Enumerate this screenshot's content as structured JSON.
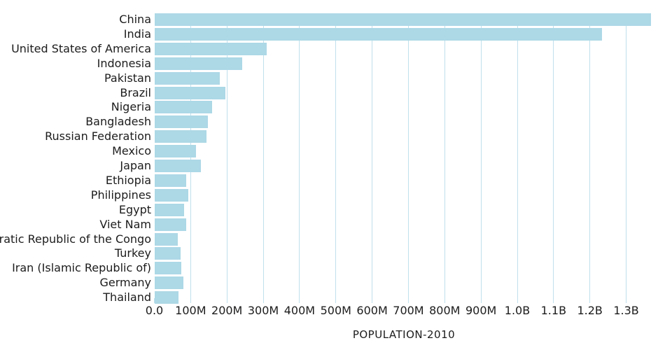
{
  "chart_data": {
    "type": "bar",
    "orientation": "horizontal",
    "title": "",
    "xlabel": "POPULATION-2010",
    "ylabel": "",
    "unit": "people",
    "categories": [
      "China",
      "India",
      "United States of America",
      "Indonesia",
      "Pakistan",
      "Brazil",
      "Nigeria",
      "Bangladesh",
      "Russian Federation",
      "Mexico",
      "Japan",
      "Ethiopia",
      "Philippines",
      "Egypt",
      "Viet Nam",
      "Democratic Republic of the Congo",
      "Turkey",
      "Iran (Islamic Republic of)",
      "Germany",
      "Thailand"
    ],
    "values_millions": [
      1368.8,
      1234.3,
      309.0,
      241.8,
      179.4,
      195.7,
      158.5,
      147.6,
      143.5,
      114.1,
      128.1,
      87.6,
      94.0,
      82.8,
      88.0,
      64.6,
      72.3,
      74.3,
      80.8,
      67.2
    ],
    "x_ticks": [
      {
        "label": "0.0",
        "millions": 0
      },
      {
        "label": "100M",
        "millions": 100
      },
      {
        "label": "200M",
        "millions": 200
      },
      {
        "label": "300M",
        "millions": 300
      },
      {
        "label": "400M",
        "millions": 400
      },
      {
        "label": "500M",
        "millions": 500
      },
      {
        "label": "600M",
        "millions": 600
      },
      {
        "label": "700M",
        "millions": 700
      },
      {
        "label": "800M",
        "millions": 800
      },
      {
        "label": "900M",
        "millions": 900
      },
      {
        "label": "1.0B",
        "millions": 1000
      },
      {
        "label": "1.1B",
        "millions": 1100
      },
      {
        "label": "1.2B",
        "millions": 1200
      },
      {
        "label": "1.3B",
        "millions": 1300
      }
    ],
    "xlim_millions": [
      0,
      1376
    ],
    "grid": true,
    "legend": "none",
    "colors": {
      "bar": "#ADD8E6",
      "gridline": "#BFE0EC",
      "text": "#1C1C1C",
      "background": "#FFFFFF"
    }
  }
}
